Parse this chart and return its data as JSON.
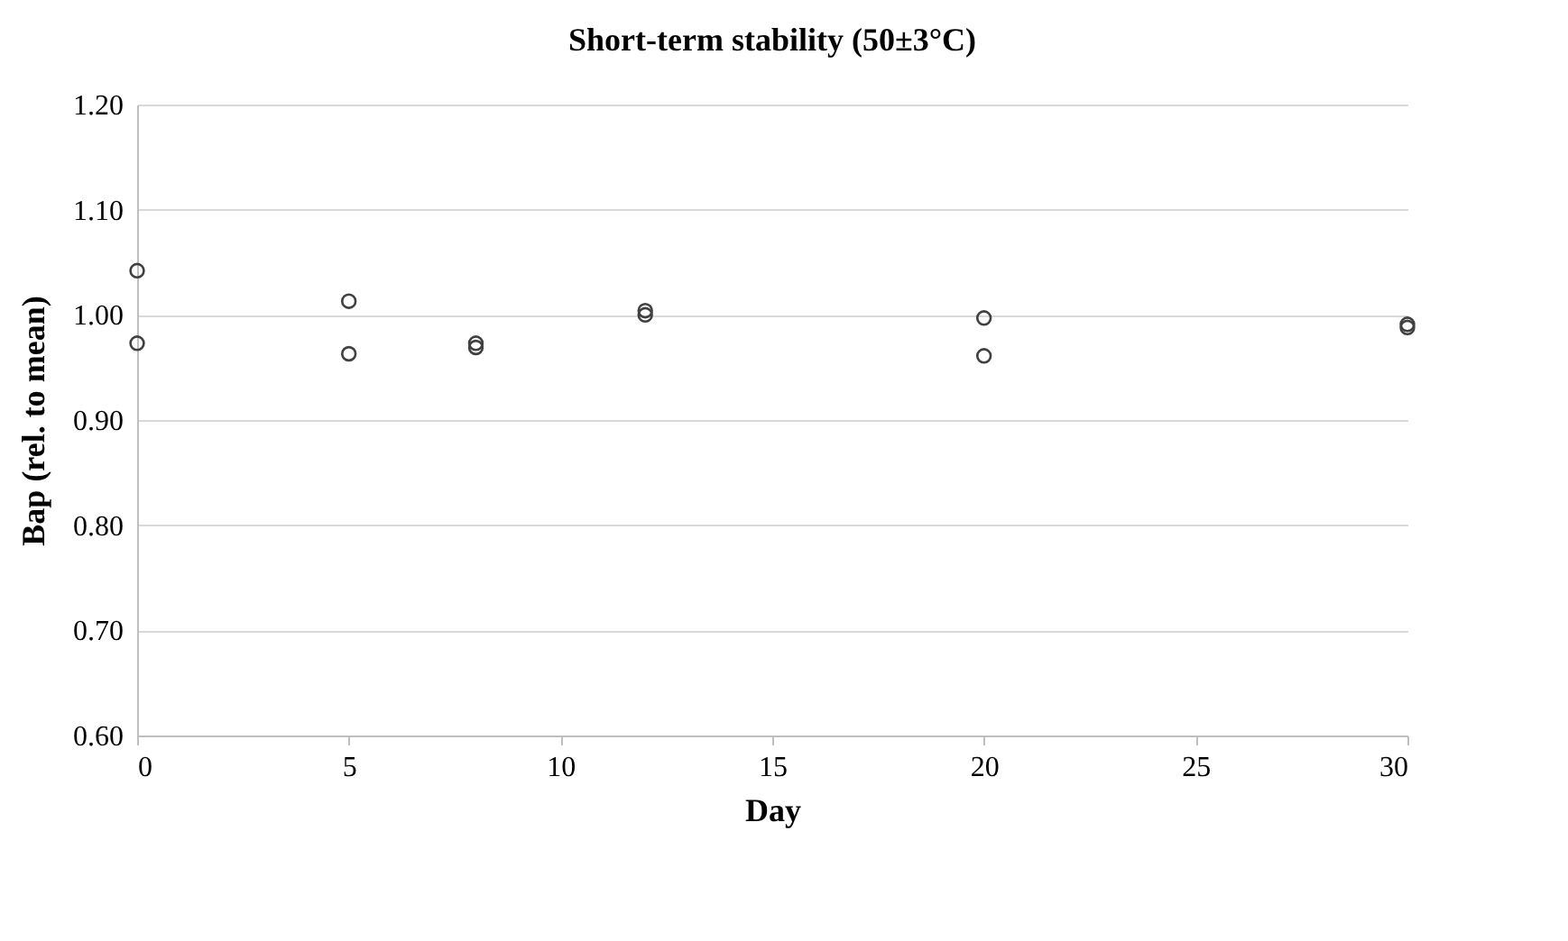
{
  "chart_data": {
    "type": "scatter",
    "title": "Short-term stability (50±3°C)",
    "xlabel": "Day",
    "ylabel": "Bap (rel. to mean)",
    "x": [
      0,
      0,
      5,
      5,
      8,
      8,
      12,
      12,
      20,
      20,
      30,
      30
    ],
    "values": [
      1.042,
      0.973,
      1.013,
      0.963,
      0.973,
      0.969,
      1.004,
      1.0,
      0.997,
      0.961,
      0.991,
      0.988
    ],
    "color": "#404040",
    "marker": "circle",
    "xlim": [
      0,
      30
    ],
    "xticks": [
      0,
      5,
      10,
      15,
      20,
      25,
      30
    ],
    "ylim": [
      0.6,
      1.2
    ],
    "yticks": [
      {
        "value": 0.6,
        "label": "0.60"
      },
      {
        "value": 0.7,
        "label": "0.70"
      },
      {
        "value": 0.8,
        "label": "0.80"
      },
      {
        "value": 0.9,
        "label": "0.90"
      },
      {
        "value": 1.0,
        "label": "1.00"
      },
      {
        "value": 1.1,
        "label": "1.10"
      },
      {
        "value": 1.2,
        "label": "1.20"
      }
    ],
    "grid": "y"
  }
}
